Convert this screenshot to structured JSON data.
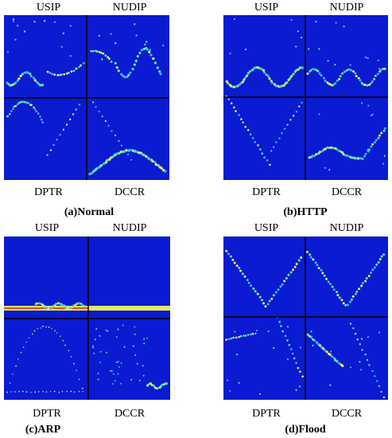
{
  "panels": [
    {
      "labels": {
        "tl": "USIP",
        "tr": "NUDIP",
        "bl": "DPTR",
        "br": "DCCR"
      },
      "caption": "(a)Normal"
    },
    {
      "labels": {
        "tl": "USIP",
        "tr": "NUDIP",
        "bl": "DPTR",
        "br": "DCCR"
      },
      "caption": "(b)HTTP"
    },
    {
      "labels": {
        "tl": "USIP",
        "tr": "NUDIP",
        "bl": "DPTR",
        "br": "DCCR"
      },
      "caption": "(c)ARP"
    },
    {
      "labels": {
        "tl": "USIP",
        "tr": "NUDIP",
        "bl": "DPTR",
        "br": "DCCR"
      },
      "caption": "(d)Flood"
    }
  ],
  "colors": {
    "background": "#0a1bd2",
    "divider": "#000000",
    "dot_low": "#3fb8e8",
    "dot_mid": "#5fe8b0",
    "dot_high": "#e8e860",
    "arp_band": "#e05020"
  }
}
